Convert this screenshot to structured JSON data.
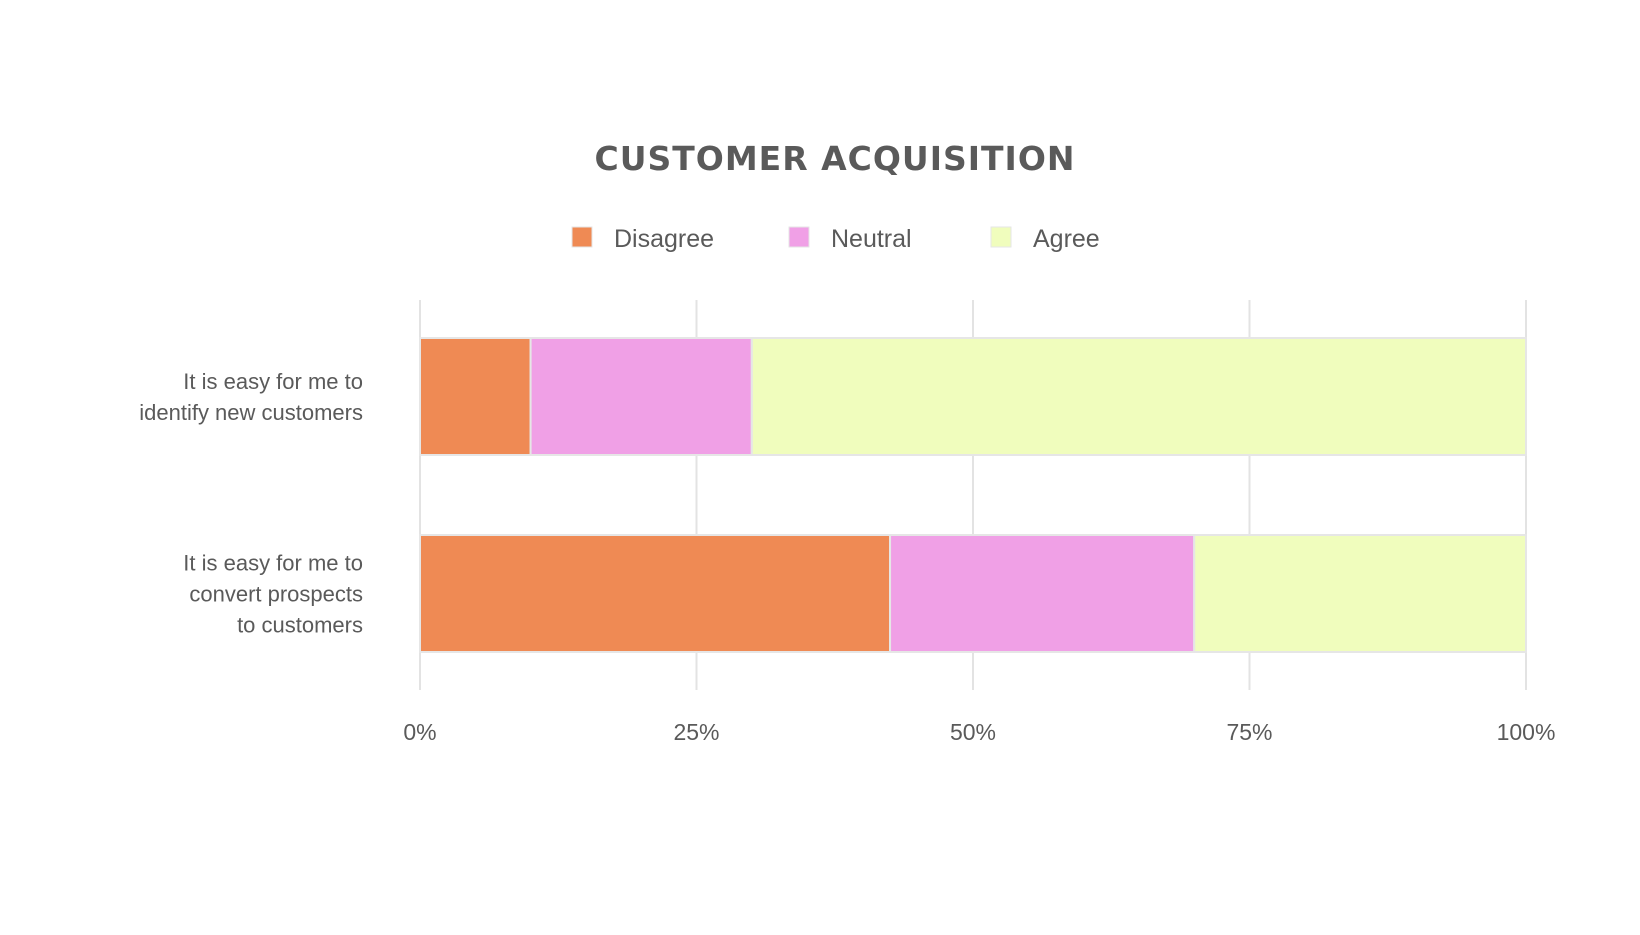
{
  "chart_data": {
    "type": "bar",
    "orientation": "horizontal",
    "stacked": true,
    "title": "CUSTOMER ACQUISITION",
    "categories": [
      [
        "It is easy for me to",
        "identify new customers"
      ],
      [
        "It is easy for me to",
        "convert prospects",
        "to customers"
      ]
    ],
    "series": [
      {
        "name": "Disagree",
        "color": "#ef8a54",
        "values": [
          10,
          42.5
        ]
      },
      {
        "name": "Neutral",
        "color": "#f0a0e6",
        "values": [
          20,
          27.5
        ]
      },
      {
        "name": "Agree",
        "color": "#f0fdbd",
        "values": [
          70,
          30
        ]
      }
    ],
    "xlim": [
      0,
      100
    ],
    "xticks": [
      0,
      25,
      50,
      75,
      100
    ],
    "xtick_labels": [
      "0%",
      "25%",
      "50%",
      "75%",
      "100%"
    ],
    "legend": "top",
    "grid": "vertical",
    "xlabel": "",
    "ylabel": ""
  }
}
